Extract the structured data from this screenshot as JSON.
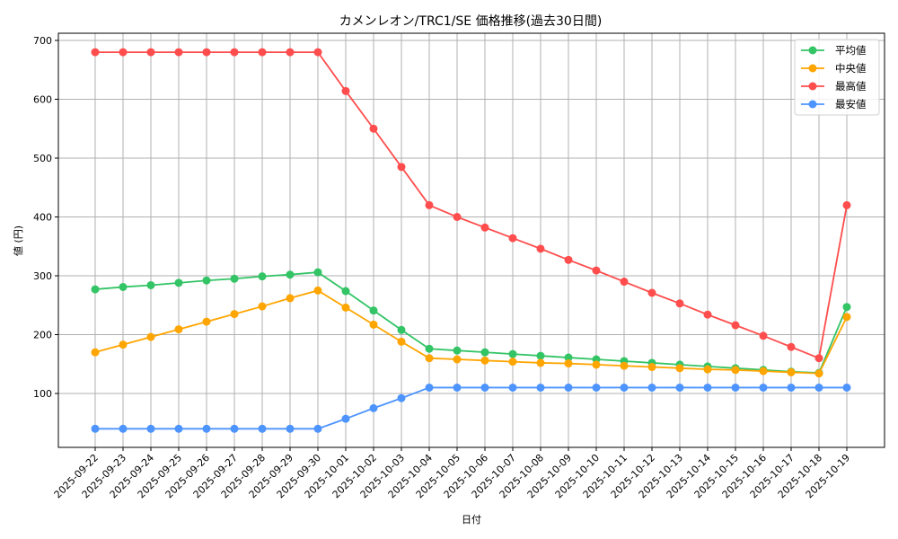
{
  "chart_data": {
    "type": "line",
    "title": "カメンレオン/TRC1/SE 価格推移(過去30日間)",
    "xlabel": "日付",
    "ylabel": "値 (円)",
    "ylim": [
      25,
      712
    ],
    "yticks": [
      100,
      200,
      300,
      400,
      500,
      600,
      700
    ],
    "grid": true,
    "legend_position": "upper right",
    "categories": [
      "2025-09-22",
      "2025-09-23",
      "2025-09-24",
      "2025-09-25",
      "2025-09-26",
      "2025-09-27",
      "2025-09-28",
      "2025-09-29",
      "2025-09-30",
      "2025-10-01",
      "2025-10-02",
      "2025-10-03",
      "2025-10-04",
      "2025-10-05",
      "2025-10-06",
      "2025-10-07",
      "2025-10-08",
      "2025-10-09",
      "2025-10-10",
      "2025-10-11",
      "2025-10-12",
      "2025-10-13",
      "2025-10-14",
      "2025-10-15",
      "2025-10-16",
      "2025-10-17",
      "2025-10-18",
      "2025-10-19"
    ],
    "series": [
      {
        "name": "平均値",
        "color": "#33c466",
        "values": [
          277,
          281,
          284,
          288,
          292,
          295,
          299,
          302,
          306,
          274,
          241,
          208,
          176,
          173,
          170,
          167,
          164,
          161,
          158,
          155,
          152,
          149,
          146,
          143,
          140,
          137,
          135,
          247
        ]
      },
      {
        "name": "中央値",
        "color": "#ffa500",
        "values": [
          170,
          183,
          196,
          209,
          222,
          235,
          248,
          262,
          275,
          246,
          217,
          188,
          160,
          158,
          156,
          154,
          152,
          151,
          149,
          147,
          145,
          143,
          141,
          140,
          138,
          136,
          134,
          230
        ]
      },
      {
        "name": "最高値",
        "color": "#ff4d4d",
        "values": [
          680,
          680,
          680,
          680,
          680,
          680,
          680,
          680,
          680,
          614,
          550,
          485,
          420,
          400,
          382,
          364,
          346,
          327,
          309,
          290,
          271,
          253,
          234,
          216,
          198,
          179,
          160,
          420
        ]
      },
      {
        "name": "最安値",
        "color": "#4d94ff",
        "values": [
          40,
          40,
          40,
          40,
          40,
          40,
          40,
          40,
          40,
          57,
          75,
          92,
          110,
          110,
          110,
          110,
          110,
          110,
          110,
          110,
          110,
          110,
          110,
          110,
          110,
          110,
          110,
          110
        ]
      }
    ]
  }
}
